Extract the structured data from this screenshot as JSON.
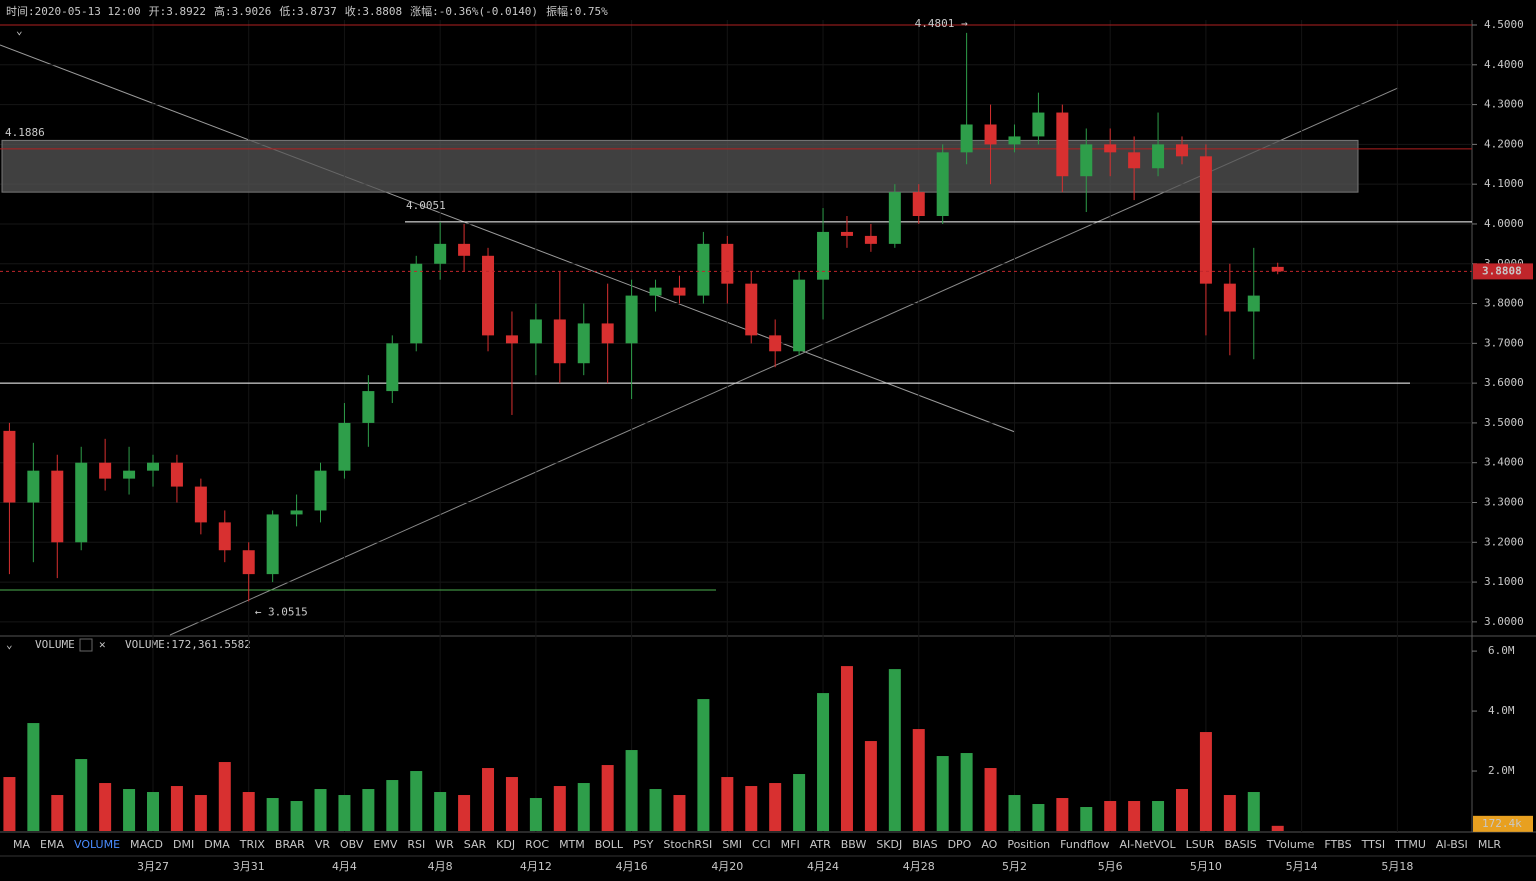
{
  "header": {
    "items": [
      {
        "label": "时间:",
        "value": "2020-05-13 12:00"
      },
      {
        "label": "开:",
        "value": "3.8922"
      },
      {
        "label": "高:",
        "value": "3.9026"
      },
      {
        "label": "低:",
        "value": "3.8737"
      },
      {
        "label": "收:",
        "value": "3.8808"
      },
      {
        "label": "涨幅:",
        "value": "-0.36%(-0.0140)",
        "negative": true
      },
      {
        "label": "振幅:",
        "value": "0.75%"
      }
    ]
  },
  "chart_data": [
    {
      "type": "candlestick",
      "up_color": "#2e9e4a",
      "down_color": "#d83030",
      "grid": true,
      "categories": [
        null,
        null,
        null,
        null,
        null,
        null,
        "3月27",
        null,
        null,
        null,
        "3月31",
        null,
        null,
        null,
        "4月4",
        null,
        null,
        null,
        "4月8",
        null,
        null,
        null,
        "4月12",
        null,
        null,
        null,
        "4月16",
        null,
        null,
        null,
        "4月20",
        null,
        null,
        null,
        "4月24",
        null,
        null,
        null,
        "4月28",
        null,
        null,
        null,
        "5月2",
        null,
        null,
        null,
        "5月6",
        null,
        null,
        null,
        "5月10",
        null,
        null,
        null,
        "5月14",
        null,
        null,
        null,
        "5月18"
      ],
      "open": [
        3.48,
        3.3,
        3.38,
        3.2,
        3.4,
        3.36,
        3.38,
        3.4,
        3.34,
        3.25,
        3.18,
        3.12,
        3.27,
        3.28,
        3.38,
        3.5,
        3.58,
        3.7,
        3.9,
        3.95,
        3.92,
        3.72,
        3.7,
        3.76,
        3.65,
        3.75,
        3.7,
        3.82,
        3.84,
        3.82,
        3.95,
        3.85,
        3.72,
        3.68,
        3.86,
        3.98,
        3.97,
        3.95,
        4.08,
        4.02,
        4.18,
        4.25,
        4.2,
        4.22,
        4.28,
        4.12,
        4.2,
        4.18,
        4.14,
        4.2,
        4.17,
        3.85,
        3.78,
        3.8922,
        null,
        null,
        null,
        null,
        null
      ],
      "high": [
        3.5,
        3.45,
        3.42,
        3.44,
        3.46,
        3.44,
        3.42,
        3.42,
        3.36,
        3.28,
        3.2,
        3.28,
        3.32,
        3.4,
        3.55,
        3.62,
        3.72,
        3.92,
        4.0051,
        4.0,
        3.94,
        3.78,
        3.8,
        3.88,
        3.8,
        3.85,
        3.86,
        3.86,
        3.87,
        3.98,
        3.97,
        3.88,
        3.76,
        3.88,
        4.04,
        4.02,
        4.0,
        4.1,
        4.1,
        4.2,
        4.4801,
        4.3,
        4.25,
        4.33,
        4.3,
        4.24,
        4.24,
        4.22,
        4.28,
        4.22,
        4.2,
        3.9,
        3.94,
        3.9026,
        null,
        null,
        null,
        null,
        null
      ],
      "low": [
        3.12,
        3.15,
        3.11,
        3.18,
        3.33,
        3.32,
        3.34,
        3.3,
        3.22,
        3.15,
        3.0515,
        3.1,
        3.24,
        3.25,
        3.36,
        3.44,
        3.55,
        3.68,
        3.86,
        3.88,
        3.68,
        3.52,
        3.62,
        3.6,
        3.62,
        3.6,
        3.56,
        3.78,
        3.8,
        3.8,
        3.8,
        3.7,
        3.64,
        3.67,
        3.76,
        3.94,
        3.93,
        3.94,
        4.0,
        4.0,
        4.15,
        4.1,
        4.18,
        4.2,
        4.08,
        4.03,
        4.12,
        4.06,
        4.12,
        4.15,
        3.72,
        3.67,
        3.66,
        3.8737,
        null,
        null,
        null,
        null,
        null
      ],
      "close": [
        3.3,
        3.38,
        3.2,
        3.4,
        3.36,
        3.38,
        3.4,
        3.34,
        3.25,
        3.18,
        3.12,
        3.27,
        3.28,
        3.38,
        3.5,
        3.58,
        3.7,
        3.9,
        3.95,
        3.92,
        3.72,
        3.7,
        3.76,
        3.65,
        3.75,
        3.7,
        3.82,
        3.84,
        3.82,
        3.95,
        3.85,
        3.72,
        3.68,
        3.86,
        3.98,
        3.97,
        3.95,
        4.08,
        4.02,
        4.18,
        4.25,
        4.2,
        4.22,
        4.28,
        4.12,
        4.2,
        4.18,
        4.14,
        4.2,
        4.17,
        3.85,
        3.78,
        3.82,
        3.8808,
        null,
        null,
        null,
        null,
        null
      ],
      "ylim": [
        2.967,
        4.5126
      ],
      "yticks": [
        {
          "value": 3.0,
          "label": "3.0000"
        },
        {
          "value": 3.1,
          "label": "3.1000"
        },
        {
          "value": 3.2,
          "label": "3.2000"
        },
        {
          "value": 3.3,
          "label": "3.3000"
        },
        {
          "value": 3.4,
          "label": "3.4000"
        },
        {
          "value": 3.5,
          "label": "3.5000"
        },
        {
          "value": 3.6,
          "label": "3.6000"
        },
        {
          "value": 3.7,
          "label": "3.7000"
        },
        {
          "value": 3.8,
          "label": "3.8000"
        },
        {
          "value": 3.9,
          "label": "3.9000"
        },
        {
          "value": 4.0,
          "label": "4.0000"
        },
        {
          "value": 4.1,
          "label": "4.1000"
        },
        {
          "value": 4.2,
          "label": "4.2000"
        },
        {
          "value": 4.3,
          "label": "4.3000"
        },
        {
          "value": 4.4,
          "label": "4.4000"
        },
        {
          "value": 4.5,
          "label": "4.5000"
        }
      ],
      "current_price": {
        "value": 3.8808,
        "label": "3.8808",
        "color": "#c0262b"
      },
      "zone": [
        4.08,
        4.21
      ],
      "levels": [
        {
          "value": 4.5,
          "color": "#b02020"
        },
        {
          "value": 4.1886,
          "label": "4.1886",
          "color": "#b02020"
        },
        {
          "value": 4.0051,
          "label": "4.0051",
          "color": "#ffffff"
        },
        {
          "value": 3.6,
          "color": "#ffffff"
        },
        {
          "value": 3.08,
          "color": "#4caf50"
        }
      ],
      "annotations": [
        {
          "value": 4.4801,
          "label": "4.4801 →"
        },
        {
          "value": 3.0515,
          "label": "← 3.0515"
        }
      ]
    },
    {
      "type": "bar",
      "title": "VOLUME",
      "legend": "VOLUME:172,361.5582",
      "values": [
        1800000,
        3600000,
        1200000,
        2400000,
        1600000,
        1400000,
        1300000,
        1500000,
        1200000,
        2300000,
        1300000,
        1100000,
        1000000,
        1400000,
        1200000,
        1400000,
        1700000,
        2000000,
        1300000,
        1200000,
        2100000,
        1800000,
        1100000,
        1500000,
        1600000,
        2200000,
        2700000,
        1400000,
        1200000,
        4400000,
        1800000,
        1500000,
        1600000,
        1900000,
        4600000,
        5500000,
        3000000,
        5400000,
        3400000,
        2500000,
        2600000,
        2100000,
        1200000,
        900000,
        1100000,
        800000,
        1000000,
        1000000,
        1000000,
        1400000,
        3300000,
        1200000,
        1300000,
        172361.5582,
        null,
        null,
        null,
        null,
        null
      ],
      "last_label": "172.4k",
      "last_color": "#e8a020",
      "ylim": [
        0,
        6370000
      ],
      "yticks": [
        {
          "value": 2000000,
          "label": "2.0M"
        },
        {
          "value": 4000000,
          "label": "4.0M"
        },
        {
          "value": 6000000,
          "label": "6.0M"
        }
      ]
    }
  ],
  "indicator_tabs": {
    "items": [
      "MA",
      "EMA",
      "VOLUME",
      "MACD",
      "DMI",
      "DMA",
      "TRIX",
      "BRAR",
      "VR",
      "OBV",
      "EMV",
      "RSI",
      "WR",
      "SAR",
      "KDJ",
      "ROC",
      "MTM",
      "BOLL",
      "PSY",
      "StochRSI",
      "SMI",
      "CCI",
      "MFI",
      "ATR",
      "BBW",
      "SKDJ",
      "BIAS",
      "DPO",
      "AO",
      "Position",
      "Fundflow",
      "AI-NetVOL",
      "LSUR",
      "BASIS",
      "TVolume",
      "FTBS",
      "TTSI",
      "TTMU",
      "AI-BSI",
      "MLR"
    ],
    "active": "VOLUME"
  }
}
